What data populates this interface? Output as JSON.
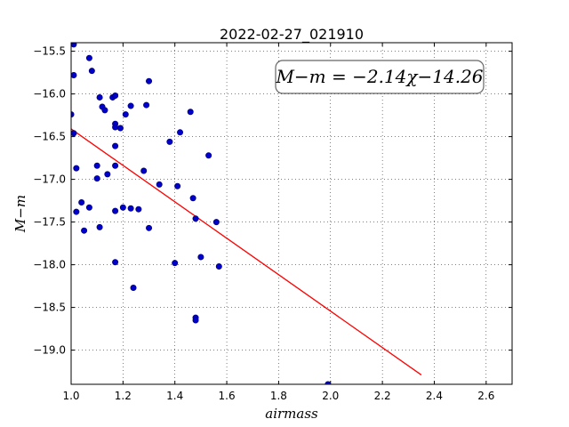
{
  "chart_data": {
    "type": "scatter",
    "title": "2022-02-27_021910",
    "xlabel": "airmass",
    "ylabel": "M−m",
    "xlim": [
      1.0,
      2.7
    ],
    "ylim": [
      -19.4,
      -15.4
    ],
    "xticks": [
      1.0,
      1.2,
      1.4,
      1.6,
      1.8,
      2.0,
      2.2,
      2.4,
      2.6
    ],
    "yticks": [
      -15.5,
      -16.0,
      -16.5,
      -17.0,
      -17.5,
      -18.0,
      -18.5,
      -19.0
    ],
    "grid": true,
    "annotation": "M−m = −2.14χ−14.26",
    "series": [
      {
        "type": "scatter",
        "color": "#0000cc",
        "points": [
          [
            1.01,
            -15.42
          ],
          [
            1.01,
            -15.78
          ],
          [
            1.07,
            -15.58
          ],
          [
            1.08,
            -15.73
          ],
          [
            1.0,
            -16.24
          ],
          [
            1.01,
            -16.46
          ],
          [
            1.11,
            -16.04
          ],
          [
            1.12,
            -16.15
          ],
          [
            1.13,
            -16.19
          ],
          [
            1.16,
            -16.04
          ],
          [
            1.17,
            -16.02
          ],
          [
            1.19,
            -16.4
          ],
          [
            1.17,
            -16.35
          ],
          [
            1.17,
            -16.39
          ],
          [
            1.17,
            -16.61
          ],
          [
            1.21,
            -16.24
          ],
          [
            1.23,
            -16.14
          ],
          [
            1.29,
            -16.13
          ],
          [
            1.3,
            -15.85
          ],
          [
            1.38,
            -16.56
          ],
          [
            1.42,
            -16.45
          ],
          [
            1.46,
            -16.21
          ],
          [
            1.53,
            -16.72
          ],
          [
            1.02,
            -16.87
          ],
          [
            1.1,
            -16.84
          ],
          [
            1.1,
            -16.99
          ],
          [
            1.14,
            -16.94
          ],
          [
            1.17,
            -16.84
          ],
          [
            1.28,
            -16.9
          ],
          [
            1.34,
            -17.06
          ],
          [
            1.41,
            -17.08
          ],
          [
            1.47,
            -17.22
          ],
          [
            1.04,
            -17.27
          ],
          [
            1.07,
            -17.33
          ],
          [
            1.02,
            -17.38
          ],
          [
            1.05,
            -17.6
          ],
          [
            1.11,
            -17.56
          ],
          [
            1.17,
            -17.37
          ],
          [
            1.2,
            -17.33
          ],
          [
            1.23,
            -17.34
          ],
          [
            1.26,
            -17.35
          ],
          [
            1.3,
            -17.57
          ],
          [
            1.48,
            -17.46
          ],
          [
            1.56,
            -17.5
          ],
          [
            1.17,
            -17.97
          ],
          [
            1.4,
            -17.98
          ],
          [
            1.5,
            -17.91
          ],
          [
            1.57,
            -18.02
          ],
          [
            1.24,
            -18.27
          ],
          [
            1.48,
            -18.62
          ],
          [
            1.48,
            -18.65
          ],
          [
            1.99,
            -19.4
          ]
        ]
      },
      {
        "type": "line",
        "color": "#ff0000",
        "points": [
          [
            1.0,
            -16.41
          ],
          [
            2.35,
            -19.29
          ]
        ]
      }
    ]
  }
}
